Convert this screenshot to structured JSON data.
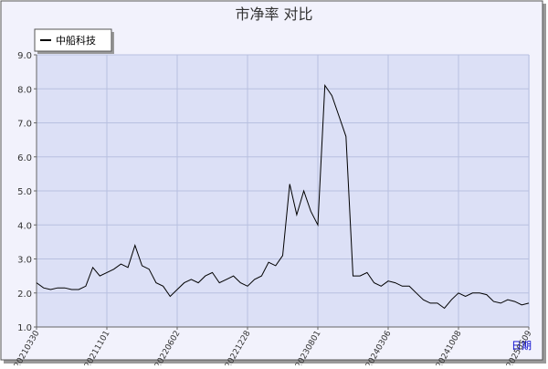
{
  "chart_data": {
    "type": "line",
    "title": "市净率  对比",
    "x_label": "日期",
    "categories": [
      "20210330",
      null,
      null,
      null,
      null,
      null,
      null,
      null,
      null,
      null,
      "20211101",
      null,
      null,
      null,
      null,
      null,
      null,
      null,
      null,
      null,
      "20220602",
      null,
      null,
      null,
      null,
      null,
      null,
      null,
      null,
      null,
      "20221228",
      null,
      null,
      null,
      null,
      null,
      null,
      null,
      null,
      null,
      "20230801",
      null,
      null,
      null,
      null,
      null,
      null,
      null,
      null,
      null,
      "20240306",
      null,
      null,
      null,
      null,
      null,
      null,
      null,
      null,
      null,
      "20241008",
      null,
      null,
      null,
      null,
      null,
      null,
      null,
      null,
      null,
      "20250509"
    ],
    "series": [
      {
        "name": "中船科技",
        "color": "#000000",
        "values": [
          2.3,
          2.15,
          2.1,
          2.15,
          2.15,
          2.1,
          2.1,
          2.2,
          2.75,
          2.5,
          2.6,
          2.7,
          2.85,
          2.75,
          3.4,
          2.8,
          2.7,
          2.3,
          2.2,
          1.9,
          2.1,
          2.3,
          2.4,
          2.3,
          2.5,
          2.6,
          2.3,
          2.4,
          2.5,
          2.3,
          2.2,
          2.4,
          2.5,
          2.9,
          2.8,
          3.1,
          5.2,
          4.3,
          5.0,
          4.4,
          4.0,
          8.1,
          7.8,
          7.2,
          6.6,
          2.5,
          2.5,
          2.6,
          2.3,
          2.2,
          2.35,
          2.3,
          2.2,
          2.2,
          2.0,
          1.8,
          1.7,
          1.7,
          1.55,
          1.8,
          2.0,
          1.9,
          2.0,
          2.0,
          1.95,
          1.75,
          1.7,
          1.8,
          1.75,
          1.65,
          1.7
        ]
      }
    ],
    "ylim": [
      1,
      9
    ],
    "yticks": [
      {
        "value": 1,
        "label": "1.0"
      },
      {
        "value": 2,
        "label": "2.0"
      },
      {
        "value": 3,
        "label": "3.0"
      },
      {
        "value": 4,
        "label": "4.0"
      },
      {
        "value": 5,
        "label": "5.0"
      },
      {
        "value": 6,
        "label": "6.0"
      },
      {
        "value": 7,
        "label": "7.0"
      },
      {
        "value": 8,
        "label": "8.0"
      },
      {
        "value": 9,
        "label": "9.0"
      }
    ],
    "grid": true,
    "legend": "top-left"
  }
}
